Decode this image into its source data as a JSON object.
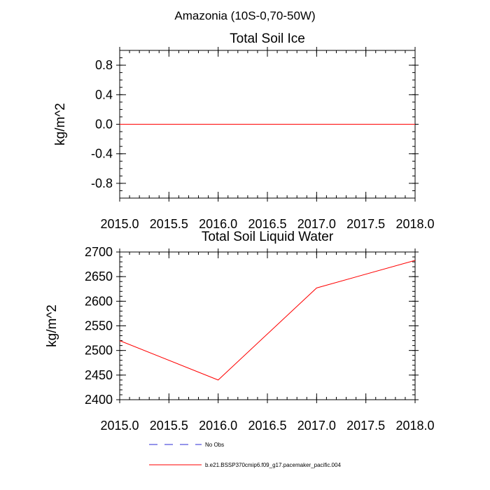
{
  "suptitle": "Amazonia (10S-0,70-50W)",
  "chart_data": [
    {
      "type": "line",
      "title": "Total Soil Ice",
      "xlabel": "",
      "ylabel": "kg/m^2",
      "xlim": [
        2015.0,
        2018.0
      ],
      "ylim": [
        -1.0,
        1.0
      ],
      "x_ticks": [
        "2015.0",
        "2015.5",
        "2016.0",
        "2016.5",
        "2017.0",
        "2017.5",
        "2018.0"
      ],
      "y_ticks": [
        "0.8",
        "0.4",
        "0.0",
        "-0.4",
        "-0.8"
      ],
      "series": [
        {
          "name": "b.e21.BSSP370cmip6.f09_g17.pacemaker_pacific.004",
          "color": "#ff0000",
          "x": [
            2015.0,
            2016.0,
            2017.0,
            2018.0
          ],
          "values": [
            0.0,
            0.0,
            0.0,
            0.0
          ]
        }
      ]
    },
    {
      "type": "line",
      "title": "Total Soil Liquid Water",
      "xlabel": "",
      "ylabel": "kg/m^2",
      "xlim": [
        2015.0,
        2018.0
      ],
      "ylim": [
        2400,
        2700
      ],
      "x_ticks": [
        "2015.0",
        "2015.5",
        "2016.0",
        "2016.5",
        "2017.0",
        "2017.5",
        "2018.0"
      ],
      "y_ticks": [
        "2700",
        "2650",
        "2600",
        "2550",
        "2500",
        "2450",
        "2400"
      ],
      "series": [
        {
          "name": "b.e21.BSSP370cmip6.f09_g17.pacemaker_pacific.004",
          "color": "#ff0000",
          "x": [
            2015.0,
            2016.0,
            2017.0,
            2018.0
          ],
          "values": [
            2520,
            2440,
            2627,
            2683
          ]
        }
      ]
    }
  ],
  "legend": [
    {
      "label": "No Obs",
      "style": "dashed",
      "color": "#2b2bd6"
    },
    {
      "label": "b.e21.BSSP370cmip6.f09_g17.pacemaker_pacific.004",
      "style": "solid",
      "color": "#ff0000"
    }
  ]
}
